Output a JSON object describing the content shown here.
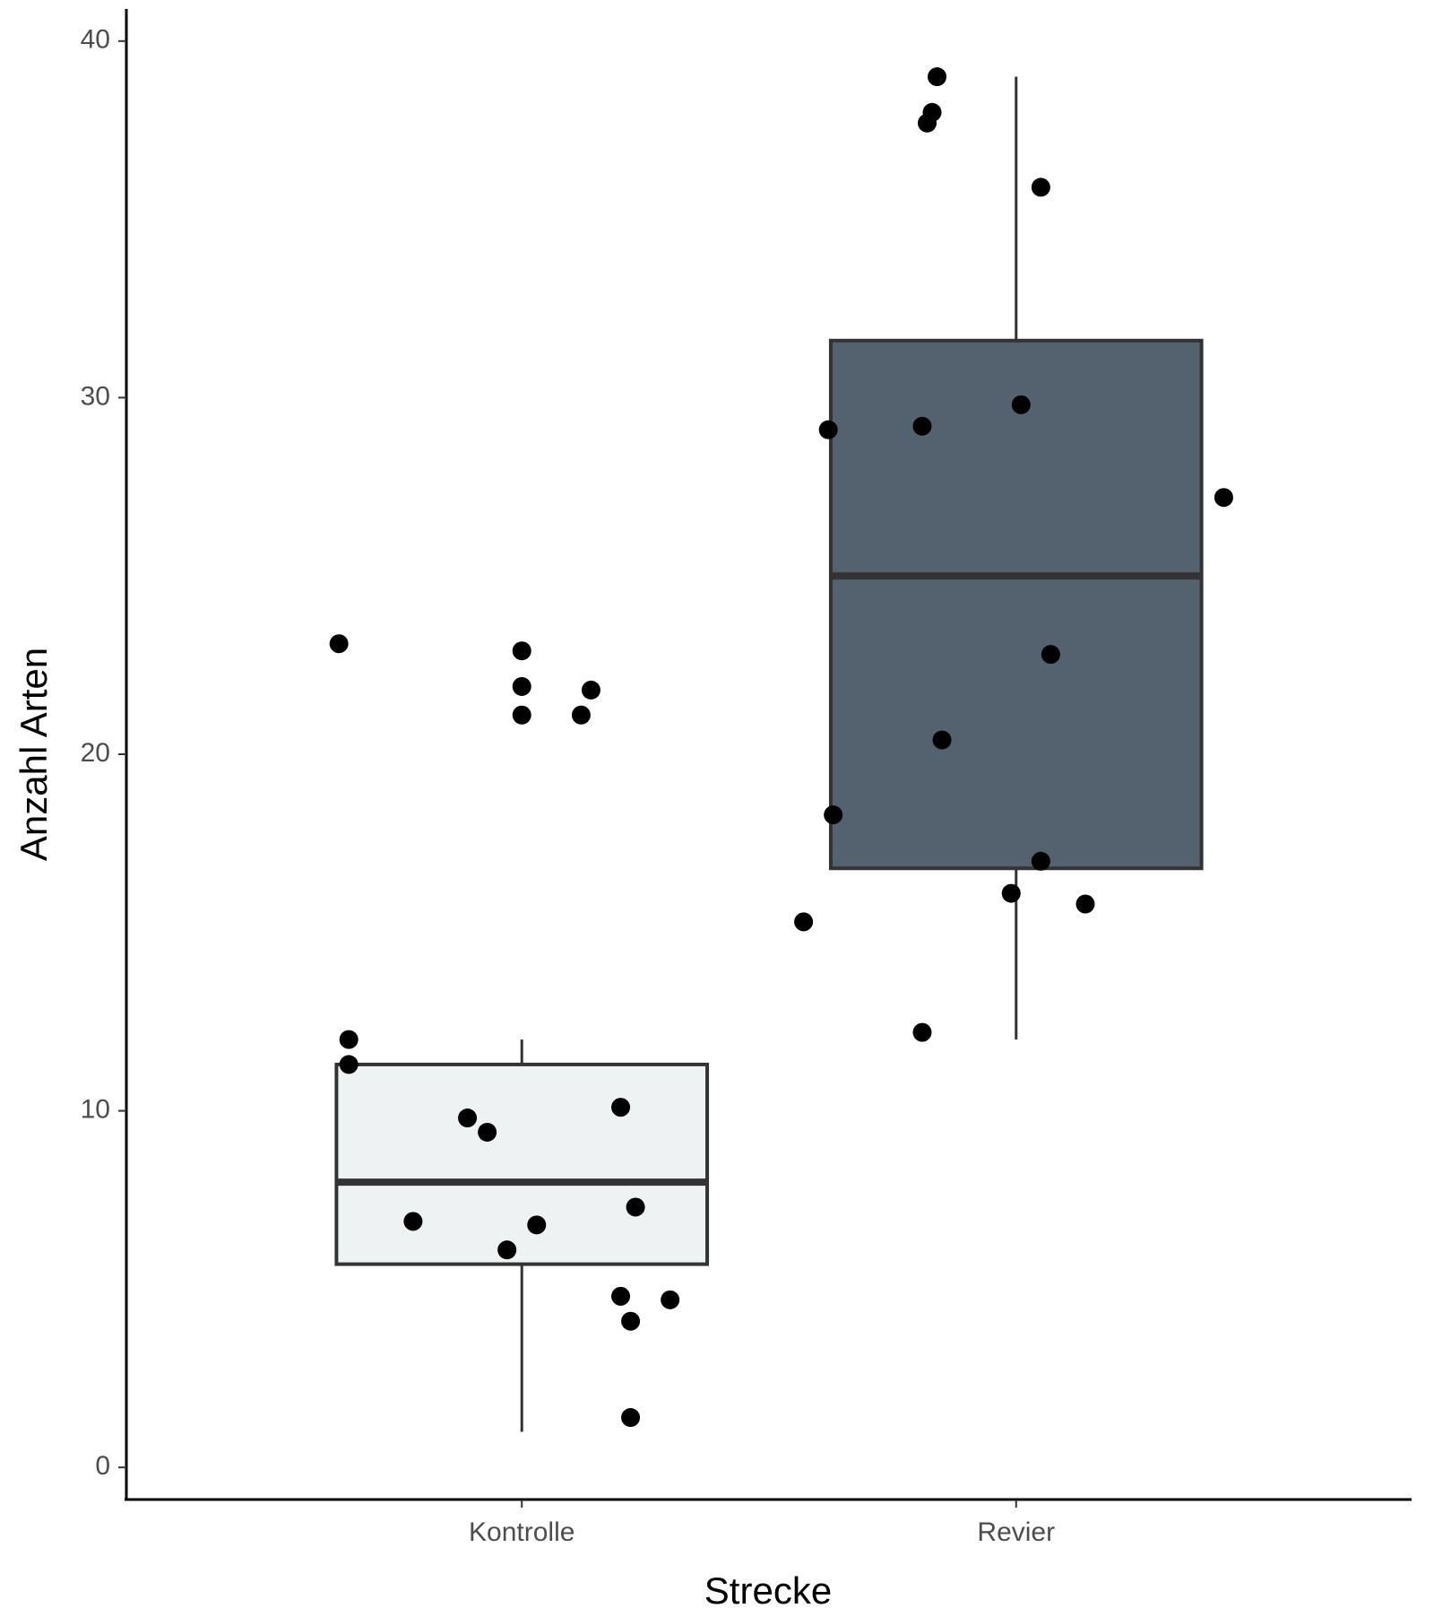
{
  "chart_data": {
    "type": "boxplot",
    "xlabel": "Strecke",
    "ylabel": "Anzahl Arten",
    "ylim": [
      -0.9,
      40.9
    ],
    "yticks": [
      0,
      10,
      20,
      30,
      40
    ],
    "grid": false,
    "categories": [
      "Kontrolle",
      "Revier"
    ],
    "colors": {
      "Kontrolle": "#eff2f3",
      "Revier": "#546270"
    },
    "boxes": [
      {
        "name": "Kontrolle",
        "whisker_low": 1,
        "q1": 5.7,
        "median": 8,
        "q3": 11.3,
        "whisker_high": 12,
        "points": [
          {
            "dx": -0.37,
            "y": 23.1
          },
          {
            "dx": -0.35,
            "y": 12
          },
          {
            "dx": -0.35,
            "y": 11.3
          },
          {
            "dx": -0.22,
            "y": 6.9
          },
          {
            "dx": -0.11,
            "y": 9.8
          },
          {
            "dx": -0.07,
            "y": 9.4
          },
          {
            "dx": -0.03,
            "y": 6.1
          },
          {
            "dx": 0.03,
            "y": 6.8
          },
          {
            "dx": 0.0,
            "y": 22.9
          },
          {
            "dx": 0.0,
            "y": 21.9
          },
          {
            "dx": 0.0,
            "y": 21.1
          },
          {
            "dx": 0.12,
            "y": 21.1
          },
          {
            "dx": 0.14,
            "y": 21.8
          },
          {
            "dx": 0.2,
            "y": 10.1
          },
          {
            "dx": 0.2,
            "y": 4.8
          },
          {
            "dx": 0.23,
            "y": 7.3
          },
          {
            "dx": 0.22,
            "y": 4.1
          },
          {
            "dx": 0.3,
            "y": 4.7
          },
          {
            "dx": 0.22,
            "y": 1.4
          }
        ]
      },
      {
        "name": "Revier",
        "whisker_low": 12,
        "q1": 16.8,
        "median": 25,
        "q3": 31.6,
        "whisker_high": 39,
        "points": [
          {
            "dx": -0.43,
            "y": 15.3
          },
          {
            "dx": -0.38,
            "y": 29.1
          },
          {
            "dx": -0.37,
            "y": 18.3
          },
          {
            "dx": -0.19,
            "y": 29.2
          },
          {
            "dx": -0.19,
            "y": 12.2
          },
          {
            "dx": -0.18,
            "y": 37.7
          },
          {
            "dx": -0.17,
            "y": 38
          },
          {
            "dx": -0.16,
            "y": 39
          },
          {
            "dx": -0.15,
            "y": 20.4
          },
          {
            "dx": -0.01,
            "y": 16.1
          },
          {
            "dx": 0.01,
            "y": 29.8
          },
          {
            "dx": 0.05,
            "y": 35.9
          },
          {
            "dx": 0.05,
            "y": 17
          },
          {
            "dx": 0.07,
            "y": 22.8
          },
          {
            "dx": 0.14,
            "y": 15.8
          },
          {
            "dx": 0.42,
            "y": 27.2
          }
        ]
      }
    ]
  }
}
